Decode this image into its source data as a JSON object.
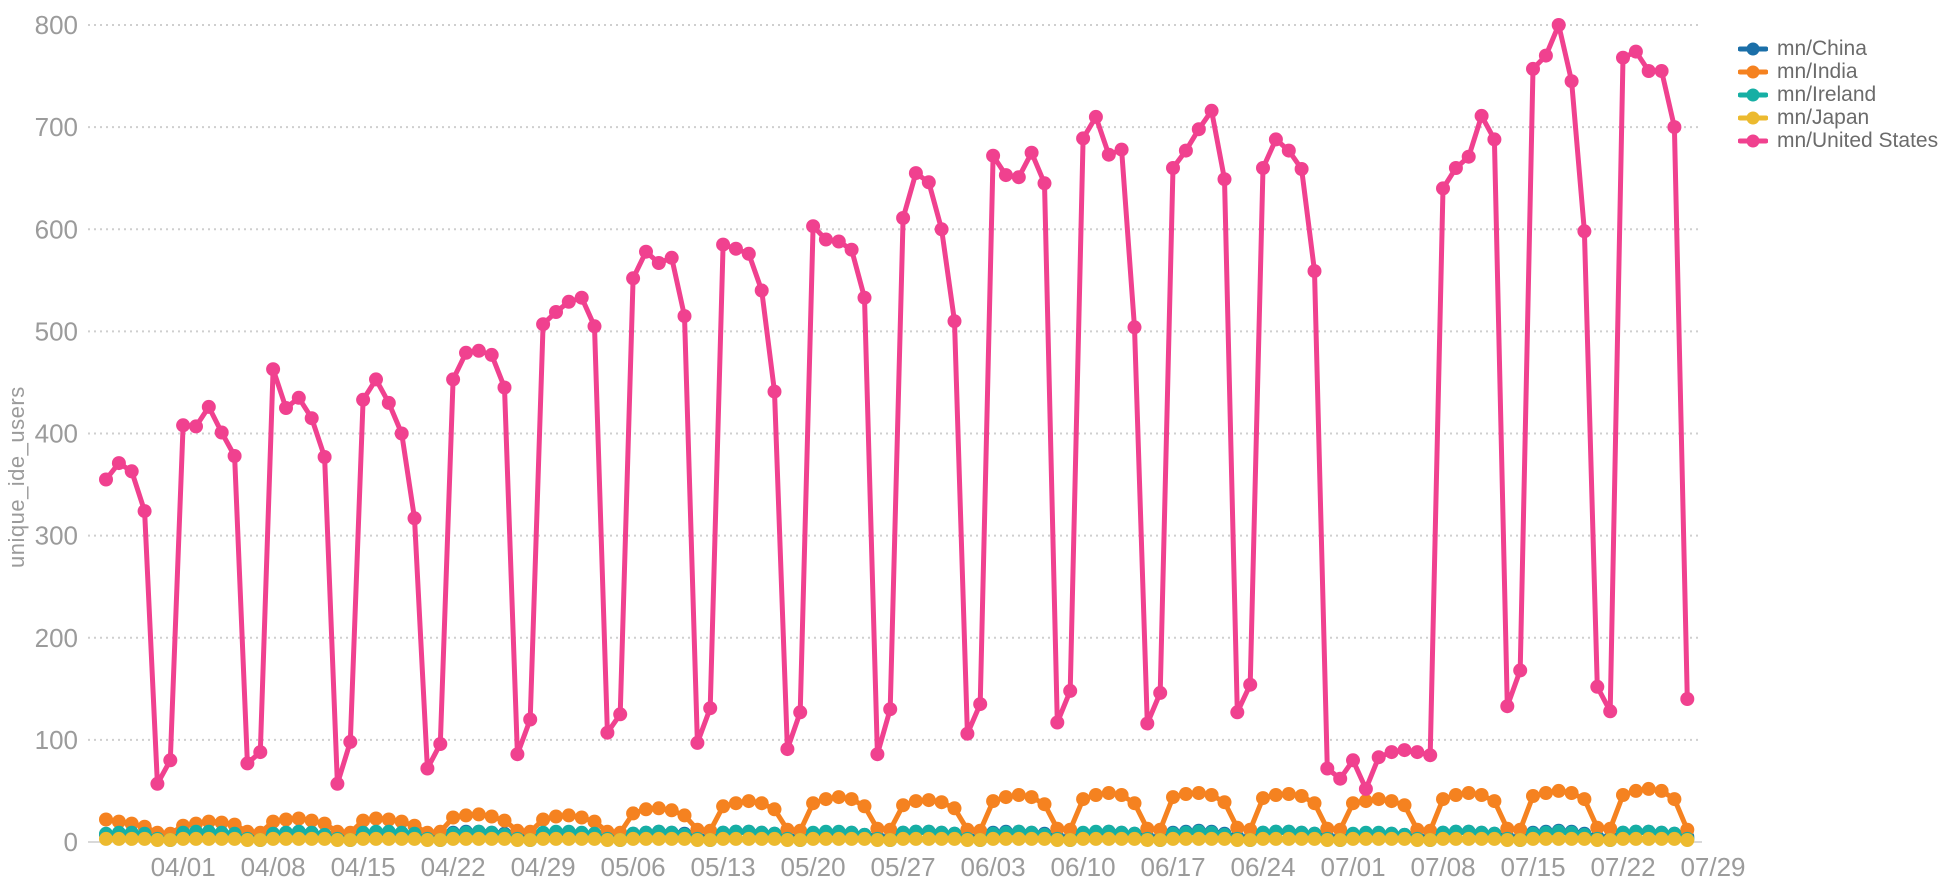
{
  "y_axis_title": "unique_ide_users",
  "chart_data": {
    "type": "line",
    "title": "",
    "xlabel": "",
    "ylabel": "unique_ide_users",
    "ylim": [
      0,
      800
    ],
    "yticks": [
      0,
      100,
      200,
      300,
      400,
      500,
      600,
      700,
      800
    ],
    "grid": "horizontal-dotted",
    "legend_position": "right",
    "x_start_date": "03/26",
    "x_frequency": "daily",
    "first_tick_day_index": 6,
    "tick_interval_days": 7,
    "xtick_labels": [
      "04/01",
      "04/08",
      "04/15",
      "04/22",
      "04/29",
      "05/06",
      "05/13",
      "05/20",
      "05/27",
      "06/03",
      "06/10",
      "06/17",
      "06/24",
      "07/01",
      "07/08",
      "07/15",
      "07/22",
      "07/29"
    ],
    "series": [
      {
        "name": "mn/China",
        "color": "#1B6FA8",
        "values": [
          7,
          8,
          8,
          7,
          5,
          4,
          8,
          9,
          9,
          8,
          7,
          5,
          4,
          8,
          9,
          10,
          9,
          7,
          5,
          4,
          8,
          9,
          9,
          8,
          7,
          5,
          4,
          9,
          10,
          10,
          9,
          8,
          5,
          4,
          8,
          9,
          9,
          8,
          7,
          5,
          4,
          8,
          9,
          10,
          9,
          8,
          5,
          4,
          9,
          10,
          10,
          9,
          8,
          5,
          4,
          8,
          9,
          9,
          9,
          7,
          5,
          4,
          9,
          10,
          10,
          9,
          8,
          5,
          4,
          9,
          10,
          10,
          9,
          8,
          5,
          4,
          8,
          9,
          10,
          9,
          8,
          5,
          4,
          9,
          10,
          11,
          10,
          8,
          5,
          4,
          9,
          10,
          10,
          9,
          8,
          5,
          4,
          7,
          8,
          8,
          8,
          7,
          5,
          4,
          9,
          10,
          10,
          9,
          8,
          5,
          4,
          9,
          10,
          11,
          10,
          8,
          5,
          4,
          9,
          10,
          10,
          9,
          8,
          5
        ]
      },
      {
        "name": "mn/India",
        "color": "#F58220",
        "values": [
          22,
          20,
          18,
          15,
          9,
          8,
          16,
          18,
          20,
          19,
          17,
          10,
          9,
          20,
          22,
          23,
          21,
          18,
          10,
          9,
          21,
          23,
          22,
          20,
          16,
          9,
          10,
          24,
          26,
          27,
          25,
          21,
          11,
          10,
          22,
          25,
          26,
          24,
          20,
          10,
          9,
          28,
          32,
          33,
          31,
          26,
          12,
          11,
          35,
          38,
          40,
          38,
          32,
          12,
          11,
          38,
          42,
          44,
          42,
          35,
          13,
          12,
          36,
          40,
          41,
          39,
          33,
          12,
          11,
          40,
          44,
          46,
          44,
          37,
          13,
          12,
          42,
          46,
          48,
          46,
          38,
          13,
          12,
          44,
          47,
          48,
          46,
          39,
          14,
          12,
          43,
          46,
          47,
          45,
          38,
          13,
          12,
          38,
          40,
          42,
          40,
          36,
          12,
          11,
          42,
          46,
          48,
          46,
          40,
          13,
          12,
          45,
          48,
          50,
          48,
          42,
          14,
          13,
          46,
          50,
          52,
          50,
          42,
          12
        ]
      },
      {
        "name": "mn/Ireland",
        "color": "#16AFA4",
        "values": [
          8,
          9,
          9,
          8,
          3,
          2,
          9,
          10,
          10,
          9,
          8,
          3,
          2,
          8,
          9,
          10,
          9,
          7,
          3,
          2,
          9,
          10,
          10,
          9,
          8,
          3,
          2,
          8,
          9,
          10,
          9,
          7,
          3,
          2,
          9,
          10,
          10,
          9,
          8,
          3,
          2,
          8,
          9,
          10,
          9,
          7,
          3,
          2,
          9,
          10,
          10,
          9,
          8,
          3,
          2,
          9,
          10,
          10,
          9,
          7,
          3,
          2,
          9,
          10,
          10,
          9,
          8,
          3,
          2,
          8,
          9,
          10,
          9,
          7,
          3,
          2,
          9,
          10,
          10,
          9,
          8,
          3,
          2,
          8,
          9,
          10,
          9,
          7,
          3,
          2,
          9,
          10,
          10,
          9,
          8,
          3,
          2,
          8,
          9,
          9,
          8,
          7,
          3,
          2,
          9,
          10,
          10,
          9,
          8,
          3,
          2,
          8,
          9,
          10,
          9,
          7,
          3,
          2,
          9,
          10,
          10,
          9,
          8,
          3
        ]
      },
      {
        "name": "mn/Japan",
        "color": "#ECBA2F",
        "values": [
          3,
          3,
          3,
          3,
          2,
          2,
          3,
          3,
          3,
          3,
          3,
          2,
          2,
          3,
          3,
          3,
          3,
          3,
          2,
          2,
          3,
          3,
          3,
          3,
          3,
          2,
          2,
          3,
          3,
          3,
          3,
          3,
          2,
          2,
          3,
          3,
          3,
          3,
          3,
          2,
          2,
          3,
          3,
          3,
          3,
          3,
          2,
          2,
          3,
          3,
          3,
          3,
          3,
          2,
          2,
          3,
          3,
          3,
          3,
          3,
          2,
          2,
          3,
          3,
          3,
          3,
          3,
          2,
          2,
          3,
          3,
          3,
          3,
          3,
          2,
          2,
          3,
          3,
          3,
          3,
          3,
          2,
          2,
          3,
          3,
          3,
          3,
          3,
          2,
          2,
          3,
          3,
          3,
          3,
          3,
          2,
          2,
          3,
          3,
          3,
          3,
          3,
          2,
          2,
          3,
          3,
          3,
          3,
          3,
          2,
          2,
          3,
          3,
          3,
          3,
          3,
          2,
          2,
          3,
          3,
          3,
          3,
          3,
          2
        ]
      },
      {
        "name": "mn/United States",
        "color": "#F0418F",
        "values": [
          355,
          371,
          363,
          324,
          57,
          80,
          408,
          407,
          426,
          401,
          378,
          77,
          88,
          463,
          425,
          435,
          415,
          377,
          57,
          98,
          433,
          453,
          430,
          400,
          317,
          72,
          96,
          453,
          479,
          481,
          477,
          445,
          86,
          120,
          507,
          519,
          529,
          533,
          505,
          107,
          125,
          552,
          578,
          567,
          572,
          515,
          97,
          131,
          585,
          581,
          576,
          540,
          441,
          91,
          127,
          603,
          590,
          588,
          580,
          533,
          86,
          130,
          611,
          655,
          646,
          600,
          510,
          106,
          135,
          672,
          653,
          651,
          675,
          645,
          117,
          148,
          689,
          710,
          673,
          678,
          504,
          116,
          146,
          660,
          677,
          698,
          716,
          649,
          127,
          154,
          660,
          688,
          677,
          659,
          559,
          72,
          62,
          80,
          52,
          83,
          88,
          90,
          88,
          85,
          640,
          660,
          671,
          711,
          688,
          133,
          168,
          757,
          770,
          800,
          745,
          598,
          152,
          128,
          768,
          774,
          755,
          755,
          700,
          140
        ]
      }
    ]
  }
}
